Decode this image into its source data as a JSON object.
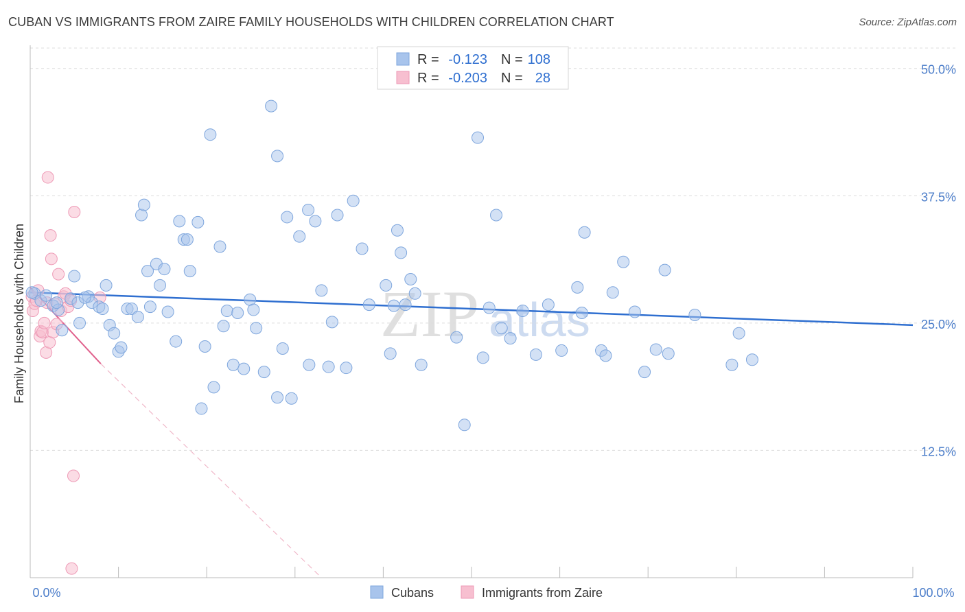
{
  "title": "CUBAN VS IMMIGRANTS FROM ZAIRE FAMILY HOUSEHOLDS WITH CHILDREN CORRELATION CHART",
  "source": "Source: ZipAtlas.com",
  "watermark": {
    "zip": "ZIP",
    "atlas": "atlas"
  },
  "colors": {
    "cubans_fill": "#a8c4ec",
    "cubans_stroke": "#7ea6dd",
    "cubans_line": "#2f6fd0",
    "zaire_fill": "#f7bfd0",
    "zaire_stroke": "#ee9ab6",
    "zaire_line": "#e0608c",
    "axis_label": "#4a7cc9",
    "grid": "#dcdcdc"
  },
  "legend_top": {
    "rows": [
      {
        "r_label": "R =",
        "r_value": "-0.123",
        "n_label": "N =",
        "n_value": "108"
      },
      {
        "r_label": "R =",
        "r_value": "-0.203",
        "n_label": "N =",
        "n_value": "28"
      }
    ]
  },
  "chart_data": {
    "type": "scatter",
    "xlabel": "",
    "ylabel": "Family Households with Children",
    "xlim": [
      0,
      100
    ],
    "ylim": [
      0,
      52
    ],
    "x_tick_labels": [
      "0.0%",
      "100.0%"
    ],
    "y_tick_labels": [
      "12.5%",
      "25.0%",
      "37.5%",
      "50.0%"
    ],
    "y_ticks": [
      12.5,
      25.0,
      37.5,
      50.0
    ],
    "grid": "horizontal dashed",
    "legend_position": "bottom-center",
    "series": [
      {
        "name": "Cubans",
        "color": "#a8c4ec",
        "r": -0.123,
        "n": 108,
        "trend": {
          "x": [
            0,
            100
          ],
          "y": [
            28.0,
            24.8
          ]
        },
        "points": [
          [
            0.5,
            27.9
          ],
          [
            1.2,
            27.2
          ],
          [
            1.8,
            27.7
          ],
          [
            2.6,
            26.7
          ],
          [
            3.2,
            26.3
          ],
          [
            3.6,
            24.3
          ],
          [
            4.6,
            27.4
          ],
          [
            5.4,
            27.0
          ],
          [
            5.0,
            29.6
          ],
          [
            5.6,
            25.0
          ],
          [
            6.6,
            27.6
          ],
          [
            7.0,
            27.0
          ],
          [
            7.8,
            26.6
          ],
          [
            8.2,
            26.4
          ],
          [
            8.6,
            28.7
          ],
          [
            9.0,
            24.8
          ],
          [
            9.5,
            24.0
          ],
          [
            10.0,
            22.2
          ],
          [
            10.3,
            22.6
          ],
          [
            11.0,
            26.4
          ],
          [
            11.5,
            26.4
          ],
          [
            12.2,
            25.6
          ],
          [
            12.6,
            35.6
          ],
          [
            12.9,
            36.6
          ],
          [
            13.3,
            30.1
          ],
          [
            13.6,
            26.6
          ],
          [
            14.3,
            30.8
          ],
          [
            14.7,
            28.7
          ],
          [
            15.2,
            30.3
          ],
          [
            15.6,
            26.1
          ],
          [
            16.5,
            23.2
          ],
          [
            16.9,
            35.0
          ],
          [
            17.4,
            33.2
          ],
          [
            17.8,
            33.2
          ],
          [
            18.1,
            30.1
          ],
          [
            19.0,
            34.9
          ],
          [
            19.4,
            16.6
          ],
          [
            19.8,
            22.7
          ],
          [
            20.4,
            43.5
          ],
          [
            20.8,
            18.7
          ],
          [
            21.5,
            32.5
          ],
          [
            21.9,
            24.7
          ],
          [
            22.3,
            26.2
          ],
          [
            23.0,
            20.9
          ],
          [
            23.5,
            26.0
          ],
          [
            24.2,
            20.5
          ],
          [
            24.9,
            27.3
          ],
          [
            25.3,
            26.3
          ],
          [
            25.6,
            24.5
          ],
          [
            26.5,
            20.2
          ],
          [
            27.3,
            46.3
          ],
          [
            28.0,
            41.4
          ],
          [
            28.0,
            17.7
          ],
          [
            28.6,
            22.5
          ],
          [
            29.1,
            35.4
          ],
          [
            29.6,
            17.6
          ],
          [
            30.5,
            33.5
          ],
          [
            31.5,
            36.1
          ],
          [
            31.6,
            20.9
          ],
          [
            32.3,
            35.0
          ],
          [
            33.0,
            28.2
          ],
          [
            33.8,
            20.7
          ],
          [
            34.2,
            25.1
          ],
          [
            34.8,
            35.6
          ],
          [
            35.8,
            20.6
          ],
          [
            36.6,
            37.0
          ],
          [
            37.6,
            32.3
          ],
          [
            38.4,
            26.8
          ],
          [
            40.3,
            28.7
          ],
          [
            40.8,
            22.0
          ],
          [
            41.2,
            26.7
          ],
          [
            41.6,
            34.1
          ],
          [
            42.0,
            31.9
          ],
          [
            42.5,
            26.8
          ],
          [
            43.1,
            29.3
          ],
          [
            43.6,
            27.9
          ],
          [
            44.3,
            20.9
          ],
          [
            48.3,
            23.6
          ],
          [
            49.2,
            15.0
          ],
          [
            50.7,
            43.2
          ],
          [
            51.3,
            21.6
          ],
          [
            52.0,
            26.5
          ],
          [
            52.8,
            35.6
          ],
          [
            53.4,
            24.5
          ],
          [
            54.4,
            23.5
          ],
          [
            55.8,
            26.2
          ],
          [
            57.3,
            21.9
          ],
          [
            58.7,
            26.8
          ],
          [
            60.2,
            22.3
          ],
          [
            62.0,
            28.5
          ],
          [
            62.5,
            26.0
          ],
          [
            62.8,
            33.9
          ],
          [
            64.7,
            22.3
          ],
          [
            65.2,
            21.8
          ],
          [
            66.0,
            28.0
          ],
          [
            67.2,
            31.0
          ],
          [
            68.5,
            26.1
          ],
          [
            69.6,
            20.2
          ],
          [
            70.9,
            22.4
          ],
          [
            71.9,
            30.2
          ],
          [
            72.3,
            22.0
          ],
          [
            75.3,
            25.8
          ],
          [
            79.5,
            20.9
          ],
          [
            80.3,
            24.0
          ],
          [
            81.8,
            21.4
          ],
          [
            0.2,
            28.0
          ],
          [
            3.0,
            27.0
          ],
          [
            6.2,
            27.5
          ]
        ]
      },
      {
        "name": "Immigrants from Zaire",
        "color": "#f7bfd0",
        "r": -0.203,
        "n": 28,
        "trend": {
          "x": [
            0,
            8
          ],
          "y": [
            28.5,
            21.0
          ]
        },
        "trend_extended": {
          "x": [
            8,
            33
          ],
          "y": [
            21.0,
            0
          ]
        },
        "points": [
          [
            0.2,
            27.6
          ],
          [
            0.3,
            26.2
          ],
          [
            0.5,
            26.9
          ],
          [
            0.7,
            27.2
          ],
          [
            0.9,
            28.2
          ],
          [
            1.1,
            23.7
          ],
          [
            1.2,
            24.2
          ],
          [
            1.4,
            24.1
          ],
          [
            1.6,
            25.0
          ],
          [
            1.8,
            22.1
          ],
          [
            1.9,
            27.0
          ],
          [
            2.0,
            39.3
          ],
          [
            2.2,
            23.1
          ],
          [
            2.3,
            33.6
          ],
          [
            2.4,
            31.3
          ],
          [
            2.6,
            24.1
          ],
          [
            2.8,
            26.9
          ],
          [
            3.0,
            24.9
          ],
          [
            3.2,
            29.8
          ],
          [
            3.5,
            26.2
          ],
          [
            3.8,
            27.6
          ],
          [
            4.0,
            27.9
          ],
          [
            4.3,
            26.6
          ],
          [
            4.6,
            27.2
          ],
          [
            4.9,
            10.0
          ],
          [
            5.0,
            35.9
          ],
          [
            4.7,
            0.9
          ],
          [
            7.9,
            27.5
          ]
        ]
      }
    ]
  }
}
